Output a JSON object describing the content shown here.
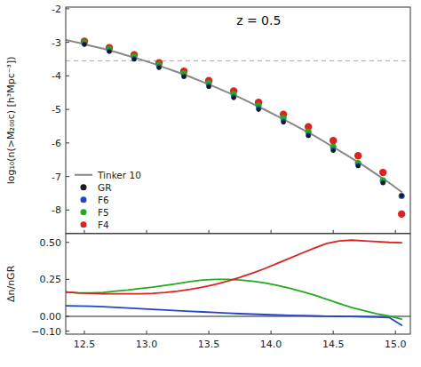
{
  "chart_data": [
    {
      "type": "line",
      "title": "z = 0.5",
      "ylabel": "log₁₀(n(>M₂₀₀c) [h³Mpc⁻³])",
      "xlim": [
        12.35,
        15.12
      ],
      "ylim": [
        -8.7,
        -1.95
      ],
      "xticks": [
        12.5,
        {
          "value": 13.0,
          "label": "13.0"
        },
        13.5,
        {
          "value": 14.0,
          "label": "14.0"
        },
        14.5,
        {
          "value": 15.0,
          "label": "15.0"
        }
      ],
      "yticks": [
        -8,
        -7,
        -6,
        -5,
        -4,
        -3,
        -2
      ],
      "tick_labels": "y",
      "grid": false,
      "legend": "lower left",
      "reference_line": -3.55,
      "series": [
        {
          "name": "Tinker 10",
          "type": "line",
          "color": "#888888",
          "x": [
            12.35,
            12.45,
            12.55,
            12.65,
            12.75,
            12.85,
            12.95,
            13.05,
            13.15,
            13.25,
            13.35,
            13.45,
            13.55,
            13.65,
            13.75,
            13.85,
            13.95,
            14.05,
            14.15,
            14.25,
            14.35,
            14.45,
            14.55,
            14.65,
            14.75,
            14.85,
            14.95,
            15.05
          ],
          "values": [
            -2.93,
            -3.01,
            -3.1,
            -3.19,
            -3.29,
            -3.4,
            -3.51,
            -3.63,
            -3.76,
            -3.89,
            -4.03,
            -4.18,
            -4.33,
            -4.49,
            -4.65,
            -4.83,
            -5.01,
            -5.2,
            -5.39,
            -5.59,
            -5.79,
            -6.01,
            -6.23,
            -6.46,
            -6.69,
            -6.94,
            -7.19,
            -7.46
          ]
        },
        {
          "name": "GR",
          "type": "scatter",
          "color": "#1a1a1a",
          "x": [
            12.5,
            12.7,
            12.9,
            13.1,
            13.3,
            13.5,
            13.7,
            13.9,
            14.1,
            14.3,
            14.5,
            14.7,
            14.9,
            15.05
          ],
          "values": [
            -3.07,
            -3.28,
            -3.51,
            -3.76,
            -4.03,
            -4.33,
            -4.66,
            -5.01,
            -5.39,
            -5.79,
            -6.23,
            -6.69,
            -7.19,
            -7.57
          ]
        },
        {
          "name": "F6",
          "type": "scatter",
          "color": "#2244cc",
          "x": [
            12.5,
            12.7,
            12.9,
            13.1,
            13.3,
            13.5,
            13.7,
            13.9,
            14.1,
            14.3,
            14.5,
            14.7,
            14.9,
            15.05
          ],
          "values": [
            -3.05,
            -3.26,
            -3.49,
            -3.74,
            -4.01,
            -4.31,
            -4.63,
            -4.98,
            -5.36,
            -5.77,
            -6.21,
            -6.67,
            -7.18,
            -7.58
          ]
        },
        {
          "name": "F5",
          "type": "scatter",
          "color": "#22aa22",
          "x": [
            12.5,
            12.7,
            12.9,
            13.1,
            13.3,
            13.5,
            13.7,
            13.9,
            14.1,
            14.3,
            14.5,
            14.7,
            14.9,
            15.05
          ],
          "values": [
            -3.0,
            -3.2,
            -3.42,
            -3.67,
            -3.93,
            -4.22,
            -4.54,
            -4.88,
            -5.26,
            -5.67,
            -6.12,
            -6.6,
            -7.12,
            -7.58
          ]
        },
        {
          "name": "F4",
          "type": "scatter",
          "color": "#dd2222",
          "x": [
            12.5,
            12.7,
            12.9,
            13.1,
            13.3,
            13.5,
            13.7,
            13.9,
            14.1,
            14.3,
            14.5,
            14.7,
            14.9,
            15.05
          ],
          "values": [
            -2.97,
            -3.16,
            -3.37,
            -3.61,
            -3.86,
            -4.14,
            -4.45,
            -4.79,
            -5.15,
            -5.52,
            -5.93,
            -6.38,
            -6.88,
            -8.12
          ]
        }
      ]
    },
    {
      "type": "line",
      "ylabel": "Δn/nGR",
      "xlim": [
        12.35,
        15.12
      ],
      "ylim": [
        -0.12,
        0.56
      ],
      "xticks": [
        12.5,
        {
          "value": 13.0,
          "label": "13.0"
        },
        13.5,
        {
          "value": 14.0,
          "label": "14.0"
        },
        14.5,
        {
          "value": 15.0,
          "label": "15.0"
        }
      ],
      "yticks": [
        {
          "value": -0.1,
          "label": "−0.10"
        },
        {
          "value": 0.0,
          "label": "0.00"
        },
        0.25,
        {
          "value": 0.5,
          "label": "0.50"
        }
      ],
      "grid": false,
      "reference_line": 0.0,
      "x": [
        12.35,
        12.45,
        12.55,
        12.65,
        12.75,
        12.85,
        12.95,
        13.05,
        13.15,
        13.25,
        13.35,
        13.45,
        13.55,
        13.65,
        13.75,
        13.85,
        13.95,
        14.05,
        14.15,
        14.25,
        14.35,
        14.45,
        14.55,
        14.65,
        14.75,
        14.85,
        14.95,
        15.05
      ],
      "series": [
        {
          "color": "#2244cc",
          "values": [
            0.072,
            0.07,
            0.068,
            0.065,
            0.061,
            0.057,
            0.052,
            0.047,
            0.043,
            0.038,
            0.034,
            0.03,
            0.026,
            0.022,
            0.018,
            0.015,
            0.012,
            0.009,
            0.007,
            0.005,
            0.003,
            0.001,
            0.0,
            -0.001,
            -0.003,
            -0.005,
            -0.008,
            -0.06
          ]
        },
        {
          "color": "#22aa22",
          "values": [
            0.165,
            0.158,
            0.158,
            0.162,
            0.17,
            0.178,
            0.188,
            0.198,
            0.21,
            0.222,
            0.235,
            0.245,
            0.25,
            0.25,
            0.246,
            0.238,
            0.226,
            0.21,
            0.19,
            0.168,
            0.143,
            0.115,
            0.086,
            0.06,
            0.038,
            0.018,
            0.002,
            -0.018
          ]
        },
        {
          "color": "#dd2222",
          "values": [
            0.165,
            0.158,
            0.155,
            0.153,
            0.152,
            0.152,
            0.153,
            0.156,
            0.162,
            0.17,
            0.182,
            0.198,
            0.216,
            0.238,
            0.263,
            0.292,
            0.323,
            0.358,
            0.393,
            0.428,
            0.462,
            0.493,
            0.51,
            0.515,
            0.51,
            0.505,
            0.5,
            0.498
          ]
        }
      ]
    }
  ]
}
